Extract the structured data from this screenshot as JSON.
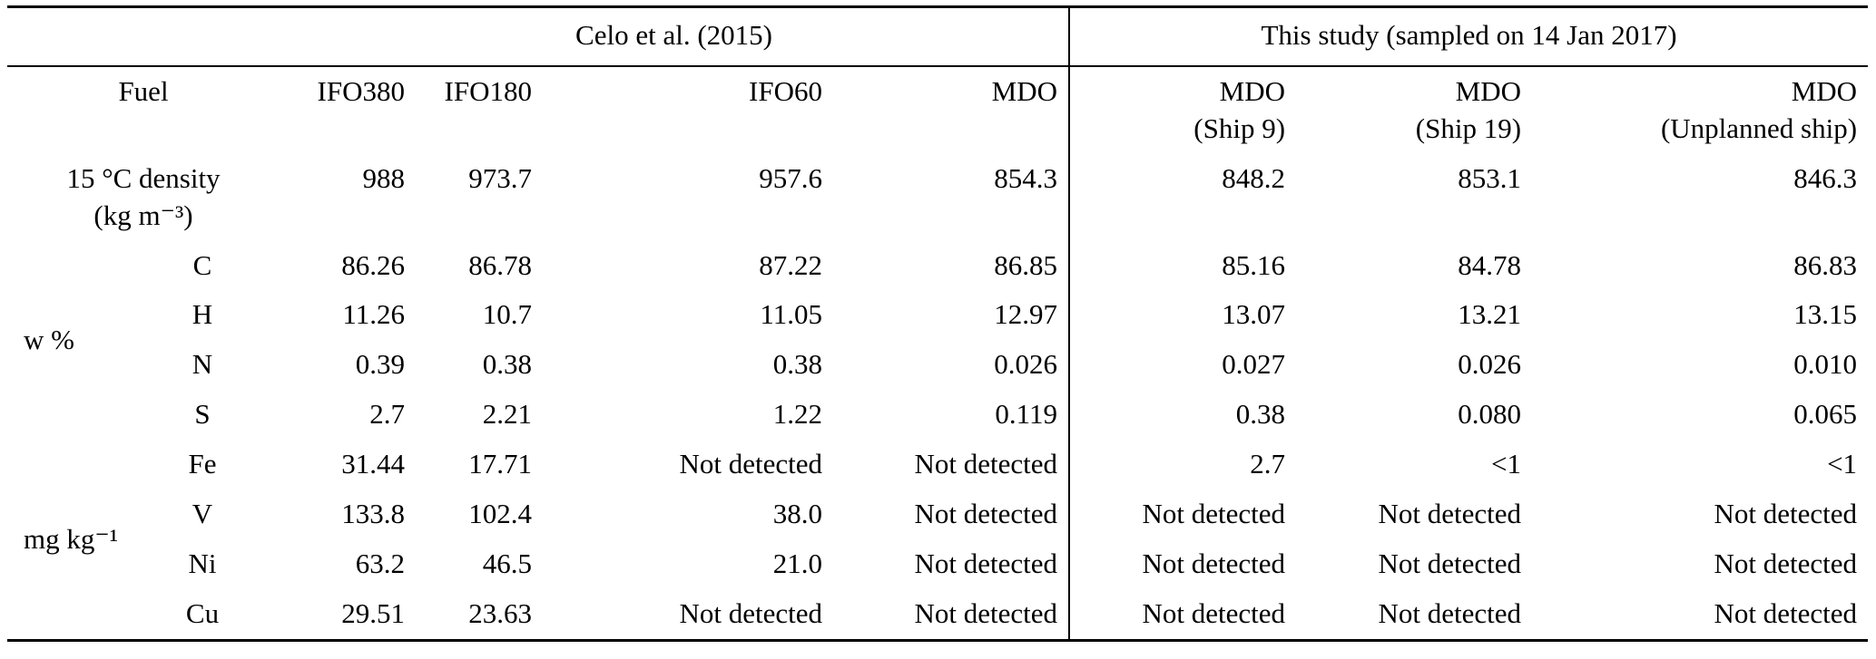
{
  "page": {
    "background": "#ffffff",
    "text_color": "#000000",
    "rule_color": "#000000"
  },
  "table": {
    "span_headers": {
      "left": "Celo et al. (2015)",
      "right": "This study (sampled on 14 Jan 2017)"
    },
    "header": {
      "fuel_label": "Fuel",
      "columns": [
        {
          "line1": "IFO380",
          "line2": ""
        },
        {
          "line1": "IFO180",
          "line2": ""
        },
        {
          "line1": "IFO60",
          "line2": ""
        },
        {
          "line1": "MDO",
          "line2": ""
        },
        {
          "line1": "MDO",
          "line2": "(Ship 9)"
        },
        {
          "line1": "MDO",
          "line2": "(Ship 19)"
        },
        {
          "line1": "MDO",
          "line2": "(Unplanned ship)"
        }
      ]
    },
    "density_row": {
      "label_line1": "15 °C density",
      "label_line2": "(kg m⁻³)",
      "values": [
        "988",
        "973.7",
        "957.6",
        "854.3",
        "848.2",
        "853.1",
        "846.3"
      ]
    },
    "groups": [
      {
        "label": "w %",
        "rows": [
          {
            "element": "C",
            "values": [
              "86.26",
              "86.78",
              "87.22",
              "86.85",
              "85.16",
              "84.78",
              "86.83"
            ]
          },
          {
            "element": "H",
            "values": [
              "11.26",
              "10.7",
              "11.05",
              "12.97",
              "13.07",
              "13.21",
              "13.15"
            ]
          },
          {
            "element": "N",
            "values": [
              "0.39",
              "0.38",
              "0.38",
              "0.026",
              "0.027",
              "0.026",
              "0.010"
            ]
          },
          {
            "element": "S",
            "values": [
              "2.7",
              "2.21",
              "1.22",
              "0.119",
              "0.38",
              "0.080",
              "0.065"
            ]
          }
        ]
      },
      {
        "label": "mg kg⁻¹",
        "rows": [
          {
            "element": "Fe",
            "values": [
              "31.44",
              "17.71",
              "Not detected",
              "Not detected",
              "2.7",
              "<1",
              "<1"
            ]
          },
          {
            "element": "V",
            "values": [
              "133.8",
              "102.4",
              "38.0",
              "Not detected",
              "Not detected",
              "Not detected",
              "Not detected"
            ]
          },
          {
            "element": "Ni",
            "values": [
              "63.2",
              "46.5",
              "21.0",
              "Not detected",
              "Not detected",
              "Not detected",
              "Not detected"
            ]
          },
          {
            "element": "Cu",
            "values": [
              "29.51",
              "23.63",
              "Not detected",
              "Not detected",
              "Not detected",
              "Not detected",
              "Not detected"
            ]
          }
        ]
      }
    ]
  }
}
